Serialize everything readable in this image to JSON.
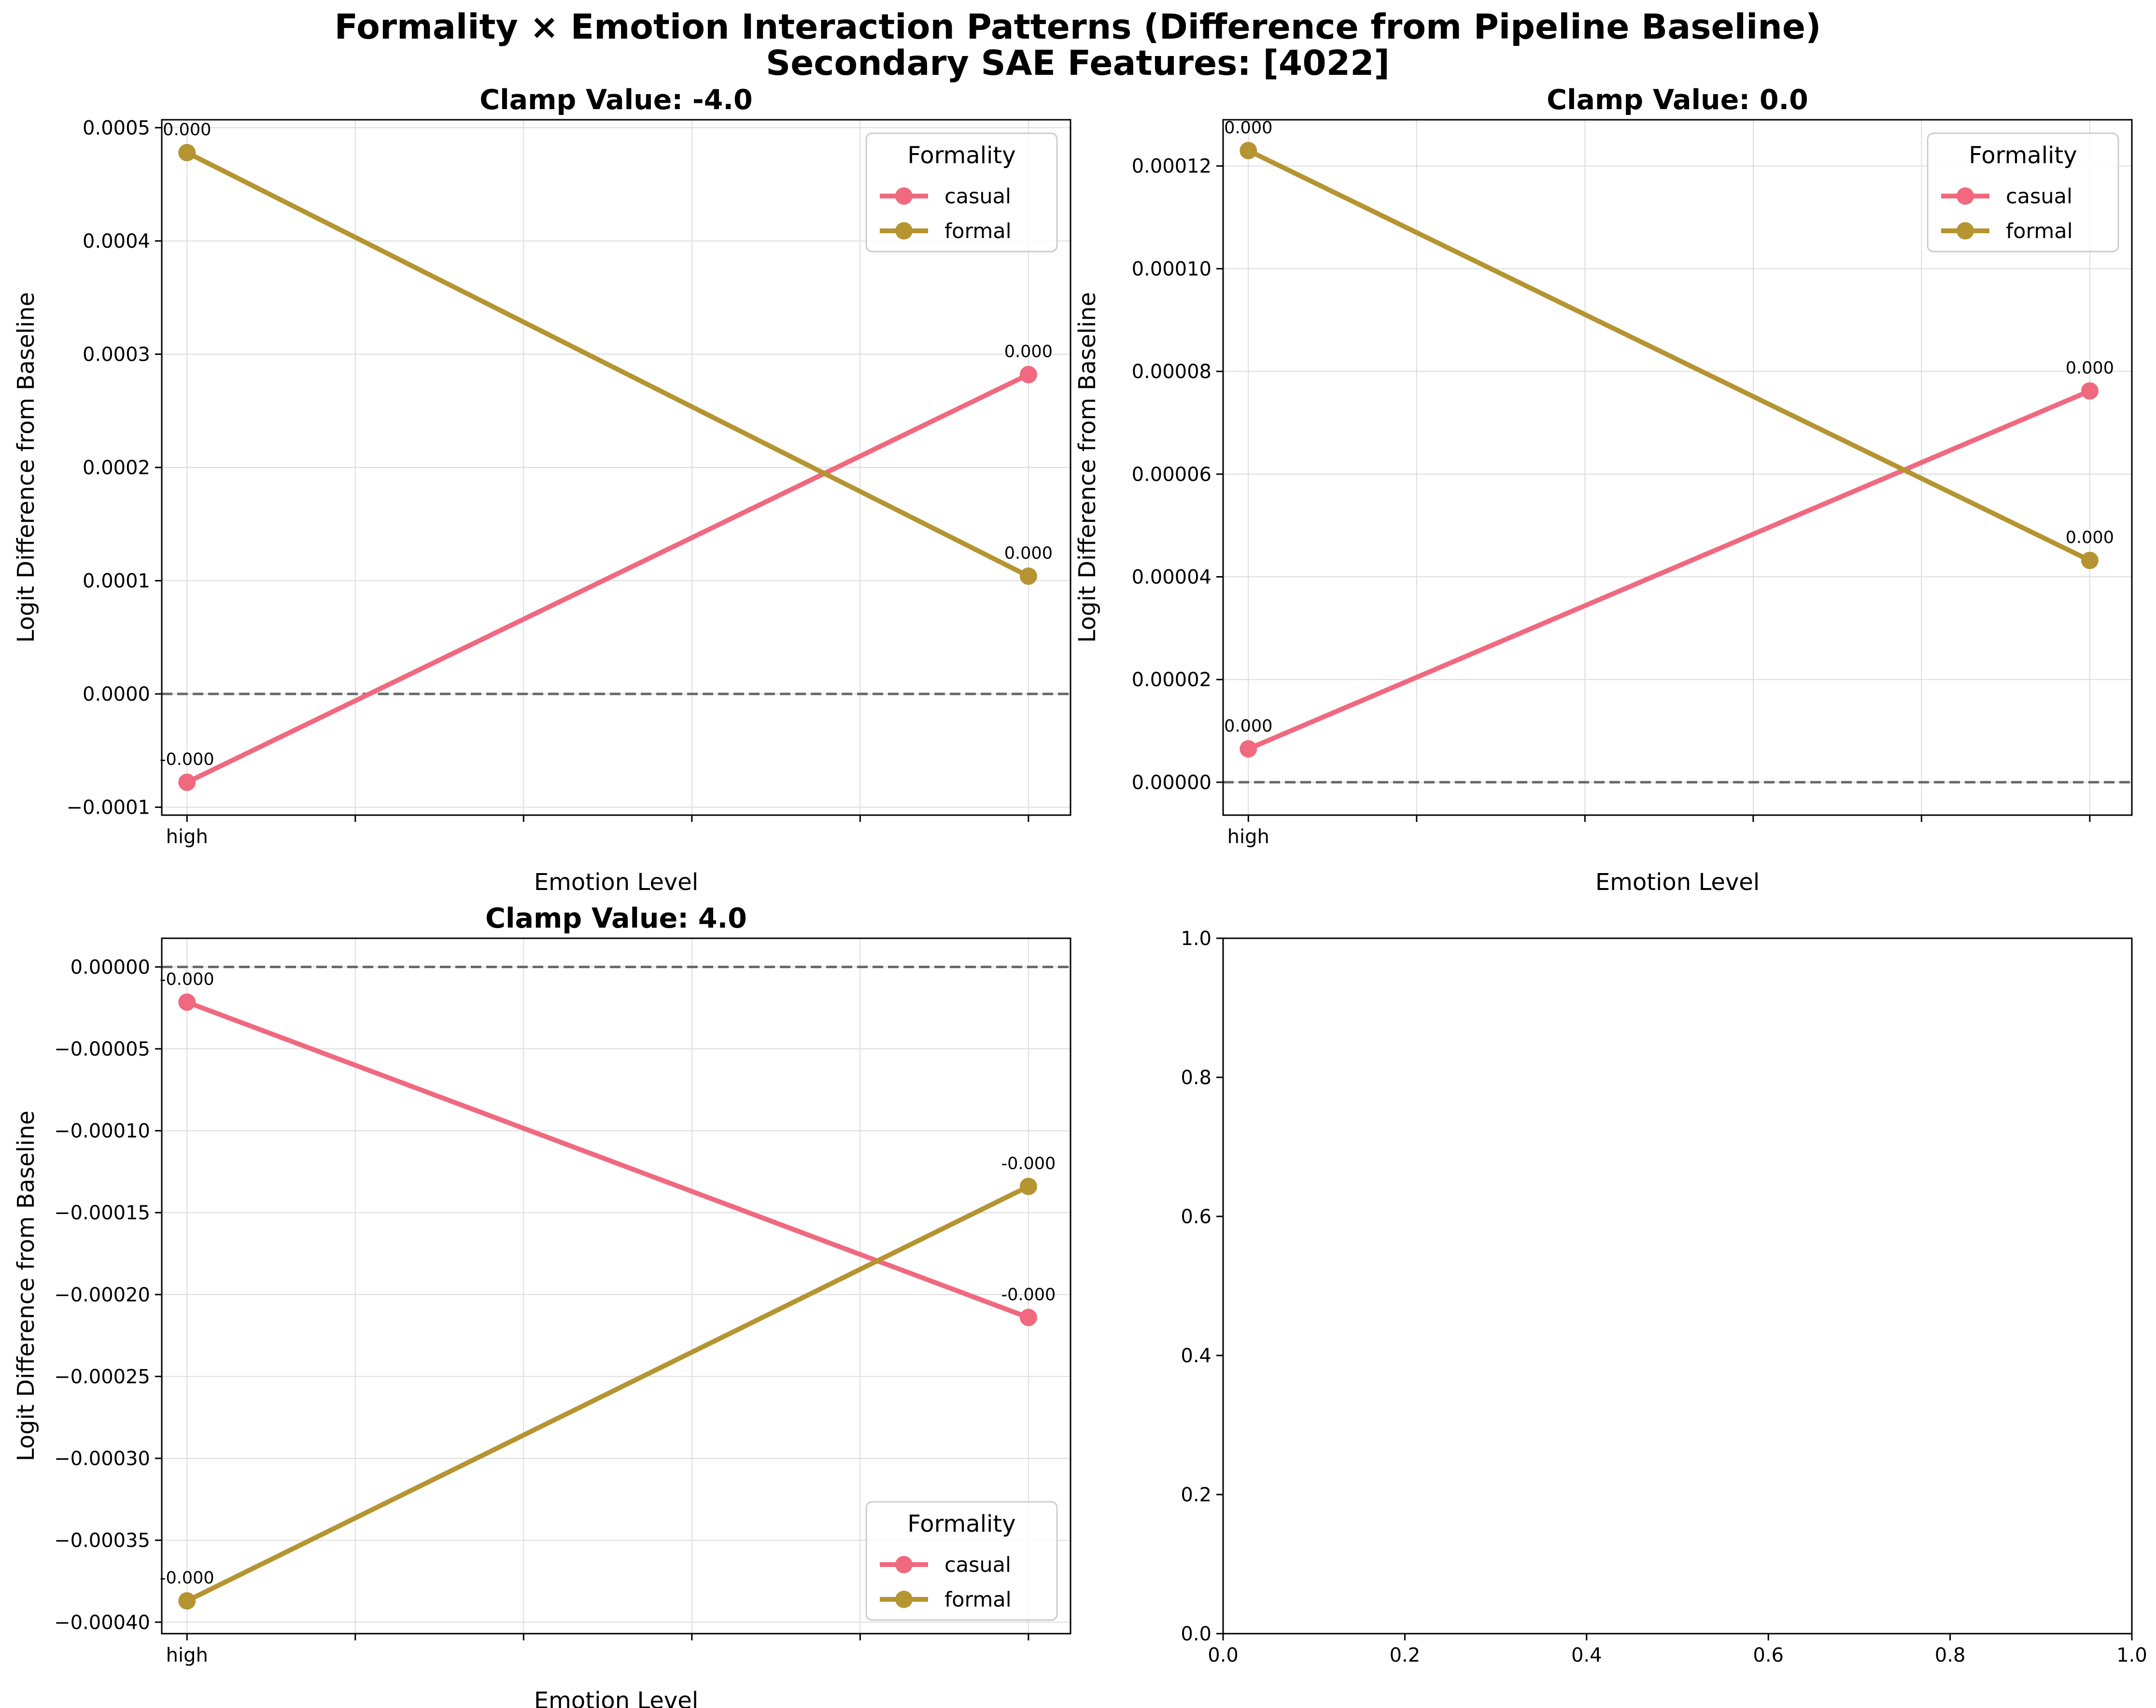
{
  "figure": {
    "title_line1": "Formality × Emotion Interaction Patterns (Difference from Pipeline Baseline)",
    "title_line2": "Secondary SAE Features: [4022]"
  },
  "colors": {
    "casual": "#f0697f",
    "formal": "#b59432",
    "zero_line": "#666666",
    "grid": "#dddddd"
  },
  "chart_data": [
    {
      "type": "line",
      "title": "Clamp Value: -4.0",
      "xlabel": "Emotion Level",
      "ylabel": "Logit Difference from Baseline",
      "x_tick_labels": [
        "high",
        "",
        "",
        "",
        "",
        ""
      ],
      "x_points": [
        0,
        5
      ],
      "xlim": [
        -0.15,
        5.25
      ],
      "ylim": [
        -0.000107,
        0.000507
      ],
      "y_ticks": [
        -0.0001,
        0.0,
        0.0001,
        0.0002,
        0.0003,
        0.0004,
        0.0005
      ],
      "y_tick_labels": [
        "−0.0001",
        "0.0000",
        "0.0001",
        "0.0002",
        "0.0003",
        "0.0004",
        "0.0005"
      ],
      "hline": 0,
      "legend_title": "Formality",
      "legend_loc": "upper right",
      "series": [
        {
          "name": "casual",
          "color_key": "casual",
          "values": [
            -7.8e-05,
            0.000282
          ],
          "labels": [
            "-0.000",
            "0.000"
          ]
        },
        {
          "name": "formal",
          "color_key": "formal",
          "values": [
            0.000478,
            0.000104
          ],
          "labels": [
            "0.000",
            "0.000"
          ]
        }
      ]
    },
    {
      "type": "line",
      "title": "Clamp Value: 0.0",
      "xlabel": "Emotion Level",
      "ylabel": "Logit Difference from Baseline",
      "x_tick_labels": [
        "high",
        "",
        "",
        "",
        "",
        ""
      ],
      "x_points": [
        0,
        5
      ],
      "xlim": [
        -0.15,
        5.25
      ],
      "ylim": [
        -6.4e-06,
        0.000129
      ],
      "y_ticks": [
        0.0,
        2e-05,
        4e-05,
        6e-05,
        8e-05,
        0.0001,
        0.00012
      ],
      "y_tick_labels": [
        "0.00000",
        "0.00002",
        "0.00004",
        "0.00006",
        "0.00008",
        "0.00010",
        "0.00012"
      ],
      "hline": 0,
      "legend_title": "Formality",
      "legend_loc": "upper right",
      "series": [
        {
          "name": "casual",
          "color_key": "casual",
          "values": [
            6.5e-06,
            7.62e-05
          ],
          "labels": [
            "0.000",
            "0.000"
          ]
        },
        {
          "name": "formal",
          "color_key": "formal",
          "values": [
            0.000123,
            4.32e-05
          ],
          "labels": [
            "0.000",
            "0.000"
          ]
        }
      ]
    },
    {
      "type": "line",
      "title": "Clamp Value: 4.0",
      "xlabel": "Emotion Level",
      "ylabel": "Logit Difference from Baseline",
      "x_tick_labels": [
        "high",
        "",
        "",
        "",
        "",
        ""
      ],
      "x_points": [
        0,
        5
      ],
      "xlim": [
        -0.15,
        5.25
      ],
      "ylim": [
        -0.000407,
        1.75e-05
      ],
      "y_ticks": [
        0.0,
        -5e-05,
        -0.0001,
        -0.00015,
        -0.0002,
        -0.00025,
        -0.0003,
        -0.00035,
        -0.0004
      ],
      "y_tick_labels": [
        "0.00000",
        "−0.00005",
        "−0.00010",
        "−0.00015",
        "−0.00020",
        "−0.00025",
        "−0.00030",
        "−0.00035",
        "−0.00040"
      ],
      "hline": 0,
      "legend_title": "Formality",
      "legend_loc": "lower right",
      "series": [
        {
          "name": "casual",
          "color_key": "casual",
          "values": [
            -2.15e-05,
            -0.000214
          ],
          "labels": [
            "-0.000",
            "-0.000"
          ]
        },
        {
          "name": "formal",
          "color_key": "formal",
          "values": [
            -0.000387,
            -0.000134
          ],
          "labels": [
            "-0.000",
            "-0.000"
          ]
        }
      ]
    },
    {
      "type": "line",
      "title": "",
      "xlabel": "",
      "ylabel": "",
      "xlim": [
        0,
        1
      ],
      "ylim": [
        0,
        1
      ],
      "x_ticks": [
        0,
        0.2,
        0.4,
        0.6,
        0.8,
        1.0
      ],
      "x_tick_labels": [
        "0.0",
        "0.2",
        "0.4",
        "0.6",
        "0.8",
        "1.0"
      ],
      "y_ticks": [
        0,
        0.2,
        0.4,
        0.6,
        0.8,
        1.0
      ],
      "y_tick_labels": [
        "0.0",
        "0.2",
        "0.4",
        "0.6",
        "0.8",
        "1.0"
      ],
      "grid": false,
      "series": []
    }
  ]
}
